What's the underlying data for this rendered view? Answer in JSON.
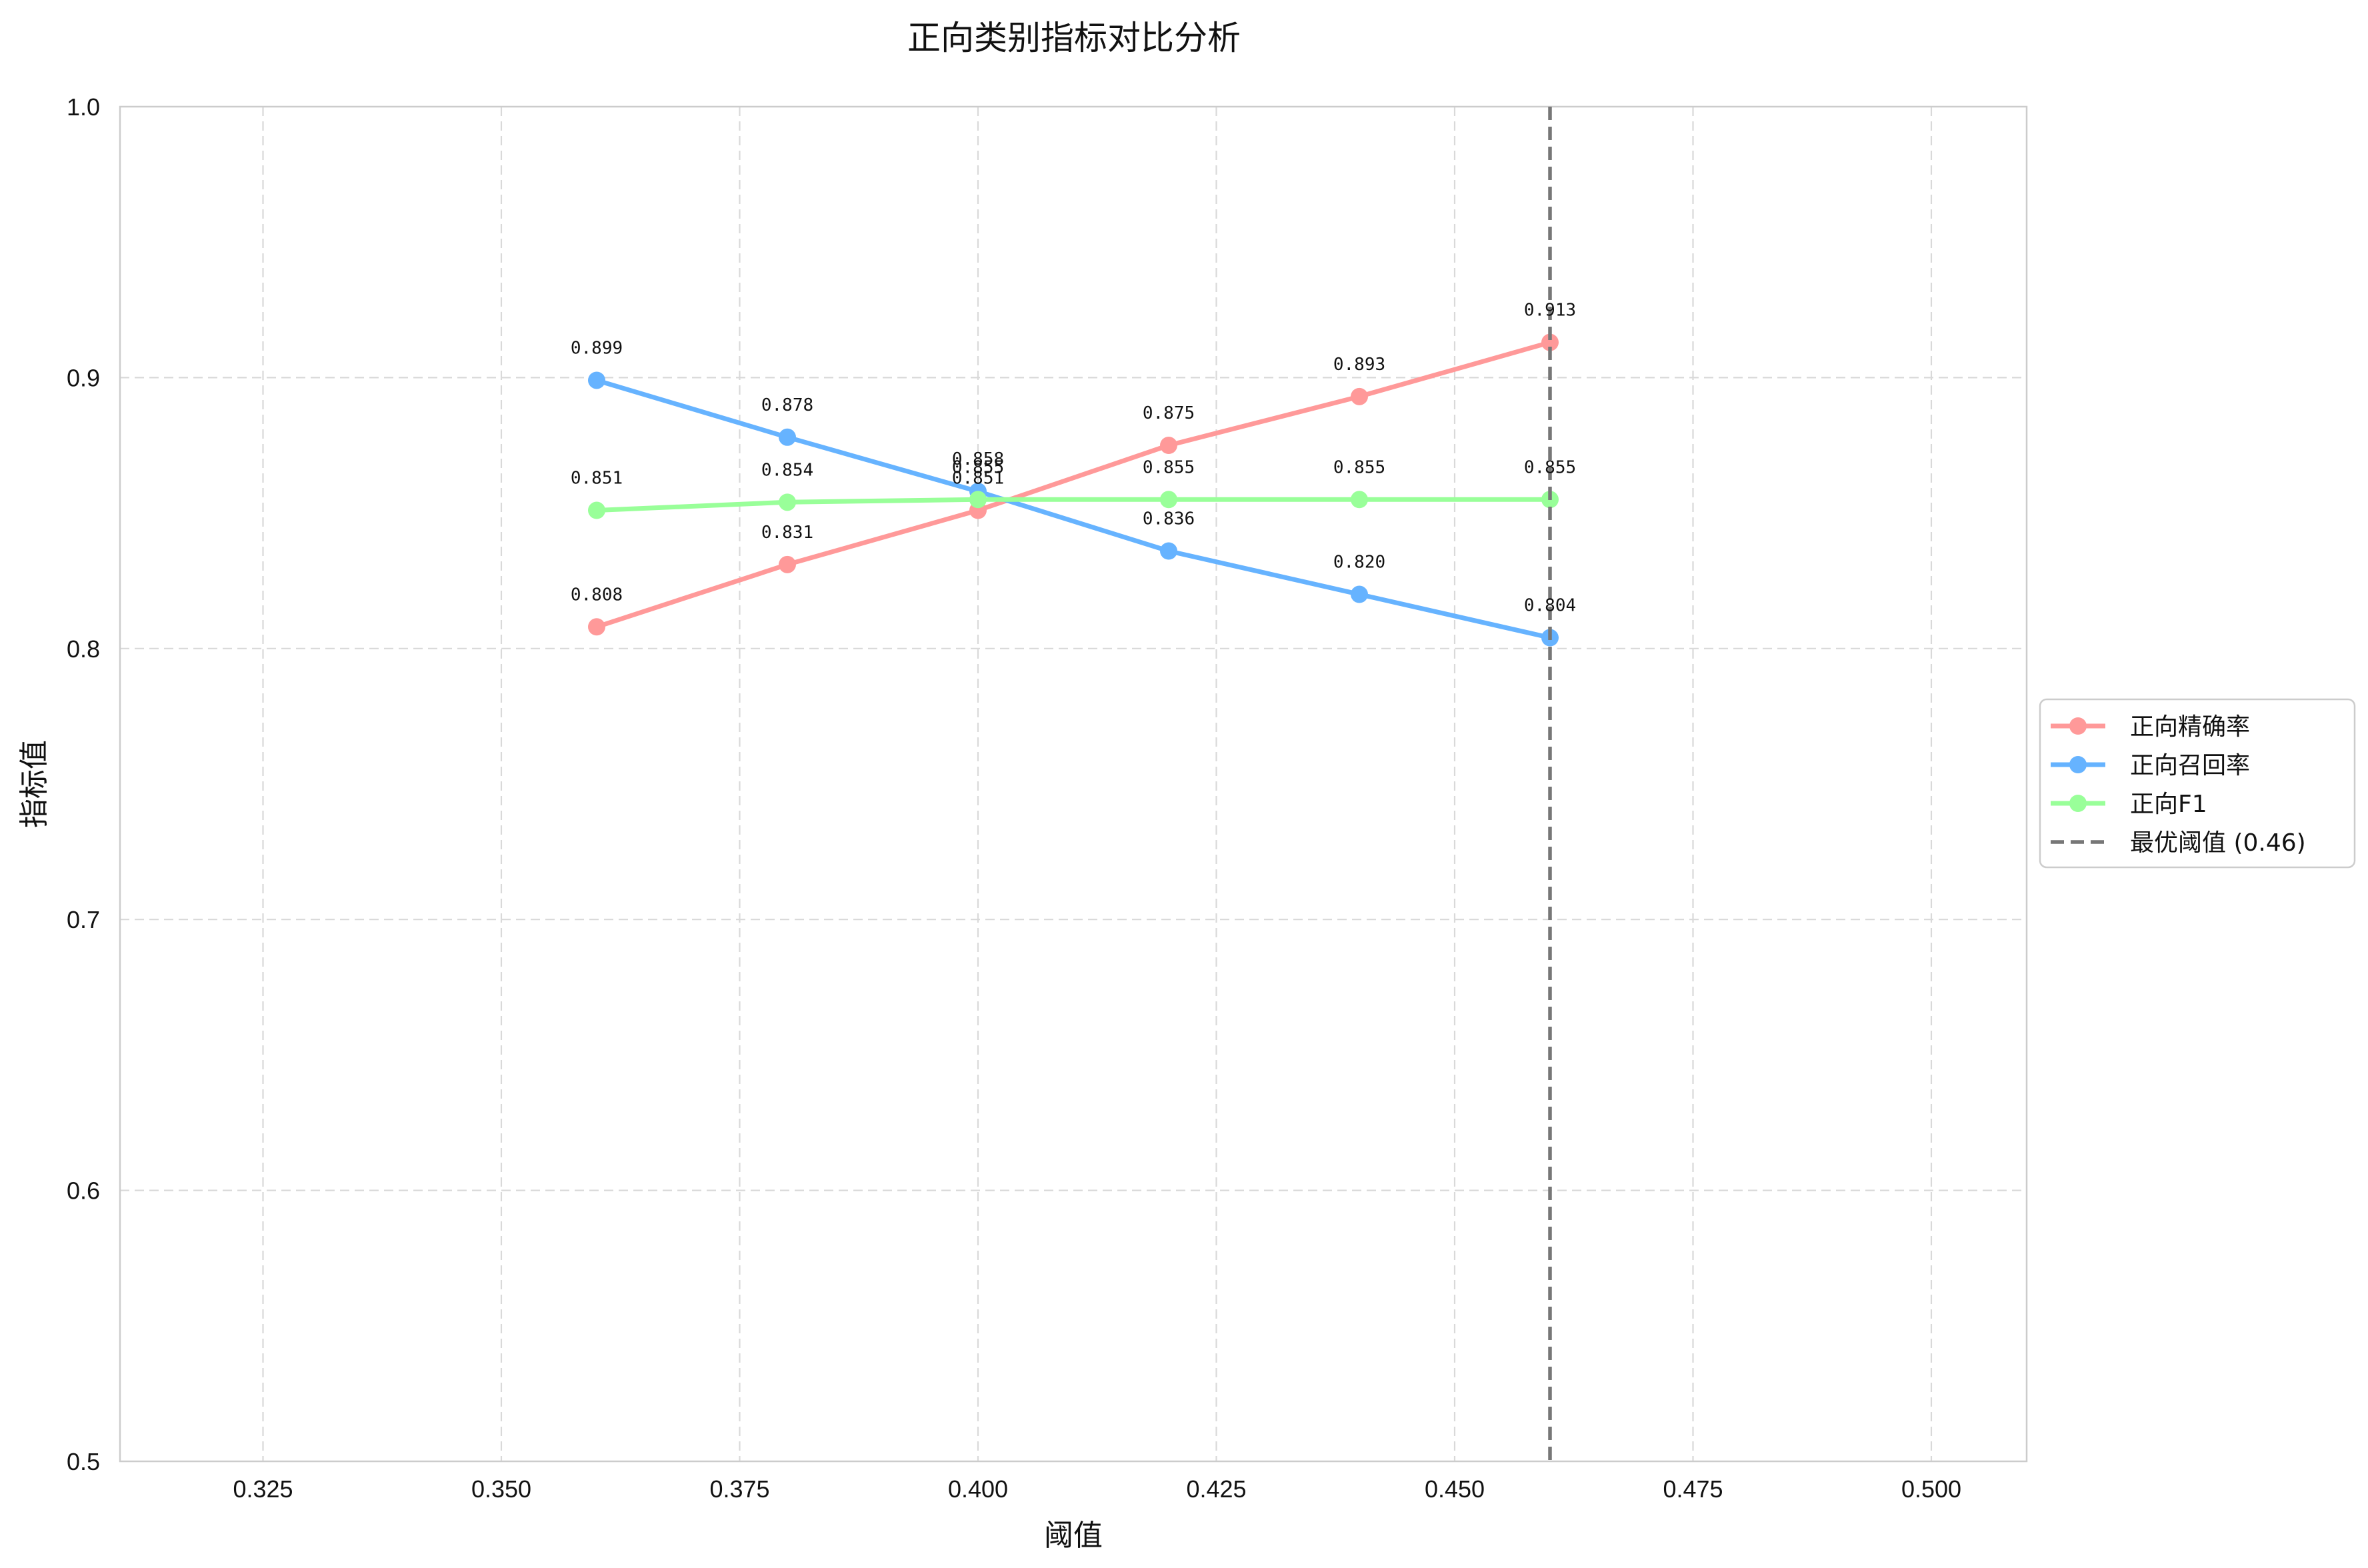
{
  "chart_data": {
    "type": "line",
    "title": "正向类别指标对比分析",
    "xlabel": "阈值",
    "ylabel": "指标值",
    "xlim": [
      0.31,
      0.51
    ],
    "ylim": [
      0.5,
      1.0
    ],
    "xticks": [
      "0.325",
      "0.350",
      "0.375",
      "0.400",
      "0.425",
      "0.450",
      "0.475",
      "0.500"
    ],
    "xtick_values": [
      0.325,
      0.35,
      0.375,
      0.4,
      0.425,
      0.45,
      0.475,
      0.5
    ],
    "yticks": [
      "0.5",
      "0.6",
      "0.7",
      "0.8",
      "0.9",
      "1.0"
    ],
    "ytick_values": [
      0.5,
      0.6,
      0.7,
      0.8,
      0.9,
      1.0
    ],
    "grid": true,
    "legend_position": "outside right",
    "x": [
      0.36,
      0.38,
      0.4,
      0.42,
      0.44,
      0.46
    ],
    "series": [
      {
        "name": "正向精确率",
        "color": "#ff9999",
        "values": [
          0.808,
          0.831,
          0.851,
          0.875,
          0.893,
          0.913
        ],
        "labels": [
          "0.808",
          "0.831",
          "0.851",
          "0.875",
          "0.893",
          "0.913"
        ]
      },
      {
        "name": "正向召回率",
        "color": "#66b3ff",
        "values": [
          0.899,
          0.878,
          0.858,
          0.836,
          0.82,
          0.804
        ],
        "labels": [
          "0.899",
          "0.878",
          "0.858",
          "0.836",
          "0.820",
          "0.804"
        ]
      },
      {
        "name": "正向F1",
        "color": "#99ff99",
        "values": [
          0.851,
          0.854,
          0.855,
          0.855,
          0.855,
          0.855
        ],
        "labels": [
          "0.851",
          "0.854",
          "0.855",
          "0.855",
          "0.855",
          "0.855"
        ]
      }
    ],
    "reference_line": {
      "x": 0.46,
      "label": "最优阈值 (0.46)",
      "color": "#777777",
      "style": "dashed"
    }
  }
}
